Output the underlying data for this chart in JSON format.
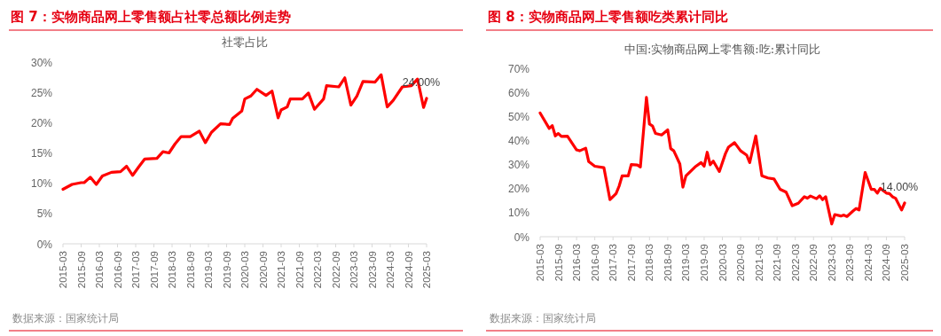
{
  "chart_data": [
    {
      "type": "line",
      "title": "图 7：实物商品网上零售额占社零总额比例走势",
      "subtitle": "社零占比",
      "color": "#ff0000",
      "x": [
        "2015-03",
        "2015-06",
        "2015-09",
        "2015-10",
        "2015-12",
        "2016-02",
        "2016-04",
        "2016-07",
        "2016-10",
        "2016-12",
        "2017-02",
        "2017-04",
        "2017-06",
        "2017-10",
        "2017-12",
        "2018-02",
        "2018-04",
        "2018-06",
        "2018-09",
        "2018-12",
        "2019-02",
        "2019-04",
        "2019-07",
        "2019-10",
        "2019-11",
        "2020-02",
        "2020-03",
        "2020-05",
        "2020-07",
        "2020-10",
        "2020-12",
        "2021-02",
        "2021-03",
        "2021-05",
        "2021-06",
        "2021-10",
        "2021-12",
        "2022-02",
        "2022-05",
        "2022-06",
        "2022-10",
        "2022-12",
        "2023-02",
        "2023-04",
        "2023-06",
        "2023-10",
        "2023-12",
        "2024-02",
        "2024-04",
        "2024-07",
        "2024-10",
        "2024-12",
        "2025-02",
        "2025-03"
      ],
      "values": [
        9.0,
        9.8,
        10.1,
        10.1,
        11.0,
        9.8,
        11.2,
        11.8,
        11.9,
        12.8,
        11.3,
        12.7,
        14.0,
        14.1,
        15.2,
        15.0,
        16.5,
        17.7,
        17.7,
        18.6,
        16.7,
        18.4,
        19.8,
        19.7,
        20.7,
        21.9,
        23.9,
        24.4,
        25.5,
        24.5,
        25.2,
        20.8,
        22.1,
        22.6,
        23.9,
        23.9,
        24.9,
        22.2,
        23.9,
        26.1,
        25.9,
        27.4,
        22.9,
        24.4,
        26.8,
        26.7,
        27.9,
        22.6,
        23.7,
        25.9,
        26.1,
        27.2,
        22.5,
        24.0
      ],
      "ylim": [
        0,
        30
      ],
      "yticks": [
        {
          "value": 0,
          "label": "0%"
        },
        {
          "value": 5,
          "label": "5%"
        },
        {
          "value": 10,
          "label": "10%"
        },
        {
          "value": 15,
          "label": "15%"
        },
        {
          "value": 20,
          "label": "20%"
        },
        {
          "value": 25,
          "label": "25%"
        },
        {
          "value": 30,
          "label": "30%"
        }
      ],
      "xlim": [
        "2015-03",
        "2025-03"
      ],
      "xticks": [
        "2015-03",
        "2015-09",
        "2016-03",
        "2016-09",
        "2017-03",
        "2017-09",
        "2018-03",
        "2018-09",
        "2019-03",
        "2019-09",
        "2020-03",
        "2020-09",
        "2021-03",
        "2021-09",
        "2022-03",
        "2022-09",
        "2023-03",
        "2023-09",
        "2024-03",
        "2024-09",
        "2025-03"
      ],
      "annotations": [
        {
          "text": "24.00%",
          "x": "2025-03",
          "y": 24
        },
        "数据来源：国家统计局"
      ]
    },
    {
      "type": "line",
      "title": "图 8：实物商品网上零售额吃类累计同比",
      "subtitle": "中国:实物商品网上零售额:吃:累计同比",
      "color": "#ff0000",
      "x": [
        "2015-03",
        "2015-06",
        "2015-07",
        "2015-08",
        "2015-09",
        "2015-10",
        "2015-12",
        "2016-03",
        "2016-04",
        "2016-06",
        "2016-07",
        "2016-09",
        "2016-12",
        "2017-02",
        "2017-04",
        "2017-05",
        "2017-06",
        "2017-08",
        "2017-09",
        "2017-11",
        "2017-12",
        "2018-02",
        "2018-03",
        "2018-04",
        "2018-05",
        "2018-07",
        "2018-09",
        "2018-10",
        "2018-11",
        "2019-01",
        "2019-02",
        "2019-03",
        "2019-06",
        "2019-08",
        "2019-09",
        "2019-10",
        "2019-11",
        "2019-12",
        "2020-02",
        "2020-04",
        "2020-05",
        "2020-07",
        "2020-09",
        "2020-11",
        "2020-12",
        "2021-02",
        "2021-04",
        "2021-06",
        "2021-08",
        "2021-10",
        "2021-12",
        "2022-02",
        "2022-04",
        "2022-06",
        "2022-07",
        "2022-08",
        "2022-10",
        "2022-11",
        "2022-12",
        "2023-01",
        "2023-03",
        "2023-04",
        "2023-06",
        "2023-07",
        "2023-08",
        "2023-10",
        "2023-11",
        "2023-12",
        "2024-02",
        "2024-04",
        "2024-05",
        "2024-06",
        "2024-07",
        "2024-09",
        "2024-10",
        "2024-11",
        "2024-12",
        "2025-02",
        "2025-03"
      ],
      "values": [
        51.4,
        45.0,
        46.2,
        41.9,
        42.9,
        41.7,
        41.8,
        36.1,
        35.7,
        36.8,
        31.2,
        29.3,
        28.7,
        15.4,
        17.9,
        21.0,
        25.3,
        25.3,
        30.0,
        29.8,
        29.0,
        57.9,
        46.8,
        46.0,
        42.9,
        42.3,
        44.4,
        36.6,
        35.7,
        30.2,
        20.6,
        25.3,
        29.0,
        30.8,
        29.3,
        35.1,
        29.9,
        31.4,
        27.1,
        34.5,
        37.2,
        39.1,
        35.7,
        33.9,
        30.8,
        41.9,
        25.3,
        24.4,
        24.0,
        19.7,
        18.5,
        12.9,
        13.9,
        16.6,
        16.0,
        16.9,
        15.8,
        17.0,
        15.4,
        16.6,
        5.3,
        9.2,
        8.6,
        9.0,
        8.4,
        10.7,
        11.7,
        11.1,
        26.7,
        19.7,
        19.7,
        18.1,
        20.1,
        18.1,
        17.9,
        16.6,
        16.0,
        11.1,
        14.0
      ],
      "ylim": [
        0,
        70
      ],
      "yticks": [
        {
          "value": 0,
          "label": "0%"
        },
        {
          "value": 10,
          "label": "10%"
        },
        {
          "value": 20,
          "label": "20%"
        },
        {
          "value": 30,
          "label": "30%"
        },
        {
          "value": 40,
          "label": "40%"
        },
        {
          "value": 50,
          "label": "50%"
        },
        {
          "value": 60,
          "label": "60%"
        },
        {
          "value": 70,
          "label": "70%"
        }
      ],
      "xlim": [
        "2015-03",
        "2025-03"
      ],
      "xticks": [
        "2015-03",
        "2015-09",
        "2016-03",
        "2016-09",
        "2017-03",
        "2017-09",
        "2018-03",
        "2018-09",
        "2019-03",
        "2019-09",
        "2020-03",
        "2020-09",
        "2021-03",
        "2021-09",
        "2022-03",
        "2022-09",
        "2023-03",
        "2023-09",
        "2024-03",
        "2024-09",
        "2025-03"
      ],
      "annotations": [
        {
          "text": "14.00%",
          "x": "2025-03",
          "y": 14
        },
        "数据来源：国家统计局"
      ]
    }
  ]
}
